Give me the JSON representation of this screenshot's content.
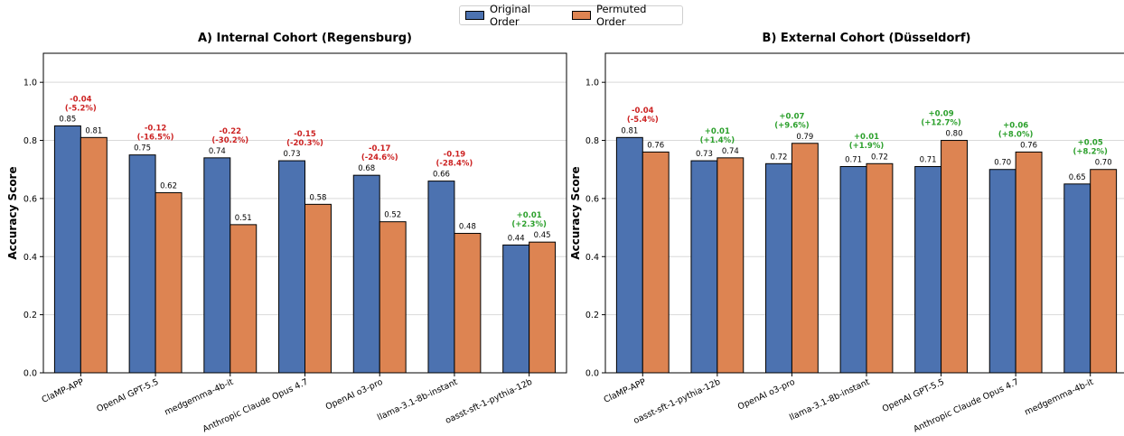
{
  "legend": {
    "original": "Original Order",
    "permuted": "Permuted Order"
  },
  "colors": {
    "original": "#4c72b0",
    "permuted": "#dd8452",
    "negative_delta": "#cc2222",
    "positive_delta": "#2ca02c",
    "grid": "#d9d9d9"
  },
  "chart_data": [
    {
      "type": "bar",
      "title": "A) Internal Cohort (Regensburg)",
      "ylabel": "Accuracy Score",
      "ylim": [
        0,
        1.1
      ],
      "yticks": [
        "0.0",
        "0.2",
        "0.4",
        "0.6",
        "0.8",
        "1.0"
      ],
      "grid": "horizontal",
      "categories": [
        "ClaMP-APP",
        "OpenAI GPT-5.5",
        "medgemma-4b-it",
        "Anthropic Claude Opus 4.7",
        "OpenAI o3-pro",
        "llama-3.1-8b-instant",
        "oasst-sft-1-pythia-12b"
      ],
      "series": [
        {
          "name": "Original Order",
          "values": [
            0.85,
            0.75,
            0.74,
            0.73,
            0.68,
            0.66,
            0.44
          ]
        },
        {
          "name": "Permuted Order",
          "values": [
            0.81,
            0.62,
            0.51,
            0.58,
            0.52,
            0.48,
            0.45
          ]
        }
      ],
      "value_labels": {
        "original": [
          "0.85",
          "0.75",
          "0.74",
          "0.73",
          "0.68",
          "0.66",
          "0.44"
        ],
        "permuted": [
          "0.81",
          "0.62",
          "0.51",
          "0.58",
          "0.52",
          "0.48",
          "0.45"
        ]
      },
      "annotations": [
        {
          "line1": "-0.04",
          "line2": "(-5.2%)",
          "sign": "negative"
        },
        {
          "line1": "-0.12",
          "line2": "(-16.5%)",
          "sign": "negative"
        },
        {
          "line1": "-0.22",
          "line2": "(-30.2%)",
          "sign": "negative"
        },
        {
          "line1": "-0.15",
          "line2": "(-20.3%)",
          "sign": "negative"
        },
        {
          "line1": "-0.17",
          "line2": "(-24.6%)",
          "sign": "negative"
        },
        {
          "line1": "-0.19",
          "line2": "(-28.4%)",
          "sign": "negative"
        },
        {
          "line1": "+0.01",
          "line2": "(+2.3%)",
          "sign": "positive"
        }
      ]
    },
    {
      "type": "bar",
      "title": "B) External Cohort (Düsseldorf)",
      "ylabel": "Accuracy Score",
      "ylim": [
        0,
        1.1
      ],
      "yticks": [
        "0.0",
        "0.2",
        "0.4",
        "0.6",
        "0.8",
        "1.0"
      ],
      "grid": "horizontal",
      "categories": [
        "ClaMP-APP",
        "oasst-sft-1-pythia-12b",
        "OpenAI o3-pro",
        "llama-3.1-8b-instant",
        "OpenAI GPT-5.5",
        "Anthropic Claude Opus 4.7",
        "medgemma-4b-it"
      ],
      "series": [
        {
          "name": "Original Order",
          "values": [
            0.81,
            0.73,
            0.72,
            0.71,
            0.71,
            0.7,
            0.65
          ]
        },
        {
          "name": "Permuted Order",
          "values": [
            0.76,
            0.74,
            0.79,
            0.72,
            0.8,
            0.76,
            0.7
          ]
        }
      ],
      "value_labels": {
        "original": [
          "0.81",
          "0.73",
          "0.72",
          "0.71",
          "0.71",
          "0.70",
          "0.65"
        ],
        "permuted": [
          "0.76",
          "0.74",
          "0.79",
          "0.72",
          "0.80",
          "0.76",
          "0.70"
        ]
      },
      "annotations": [
        {
          "line1": "-0.04",
          "line2": "(-5.4%)",
          "sign": "negative"
        },
        {
          "line1": "+0.01",
          "line2": "(+1.4%)",
          "sign": "positive"
        },
        {
          "line1": "+0.07",
          "line2": "(+9.6%)",
          "sign": "positive"
        },
        {
          "line1": "+0.01",
          "line2": "(+1.9%)",
          "sign": "positive"
        },
        {
          "line1": "+0.09",
          "line2": "(+12.7%)",
          "sign": "positive"
        },
        {
          "line1": "+0.06",
          "line2": "(+8.0%)",
          "sign": "positive"
        },
        {
          "line1": "+0.05",
          "line2": "(+8.2%)",
          "sign": "positive"
        }
      ]
    }
  ]
}
